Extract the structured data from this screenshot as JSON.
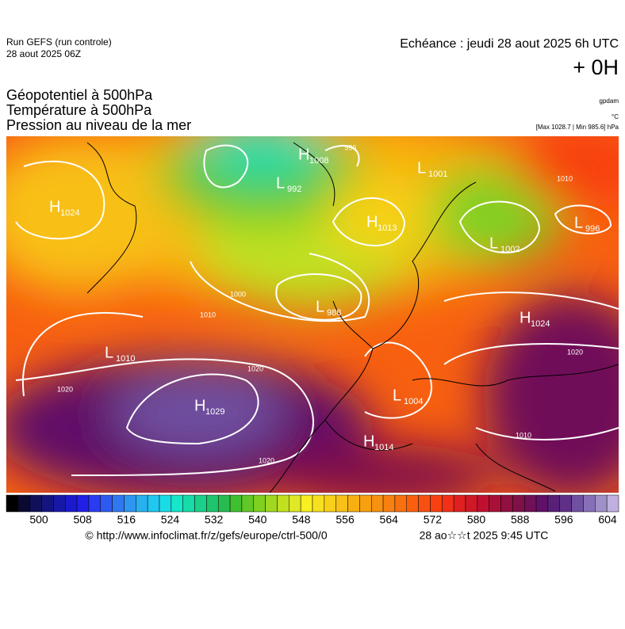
{
  "header": {
    "run": "Run GEFS (run controle)",
    "run_date": "28 aout 2025 06Z",
    "valid": "Echéance : jeudi 28 aout 2025 6h UTC",
    "offset": "+ 0H"
  },
  "titles": [
    "Géopotentiel à 500hPa",
    "Température à 500hPa",
    "Pression au niveau de la mer"
  ],
  "units": {
    "geopotential": "gpdam",
    "temperature": "°C",
    "pressure": "[Max 1028.7 | Min 985.6] hPa"
  },
  "centers": [
    {
      "letter": "H",
      "value": "1024"
    },
    {
      "letter": "H",
      "value": "1008"
    },
    {
      "letter": "L",
      "value": "992"
    },
    {
      "letter": "H",
      "value": "1013"
    },
    {
      "letter": "L",
      "value": "1001"
    },
    {
      "letter": "L",
      "value": "996"
    },
    {
      "letter": "L",
      "value": "1002"
    },
    {
      "letter": "L",
      "value": "988"
    },
    {
      "letter": "H",
      "value": "1024"
    },
    {
      "letter": "L",
      "value": "1010"
    },
    {
      "letter": "H",
      "value": "1029"
    },
    {
      "letter": "L",
      "value": "1004"
    },
    {
      "letter": "H",
      "value": "1014"
    }
  ],
  "isobar_labels": [
    "1020",
    "1020",
    "1020",
    "1010",
    "1010",
    "1000",
    "1020",
    "996",
    "1010"
  ],
  "colorbar": {
    "colors": [
      "#000000",
      "#0a0a30",
      "#10105a",
      "#141480",
      "#1818a8",
      "#1a1acc",
      "#2020e6",
      "#2a3cf0",
      "#2e5af0",
      "#3078f0",
      "#2e96f0",
      "#28b0f0",
      "#20c8f0",
      "#1adce6",
      "#18e6c8",
      "#18dca8",
      "#1cd08a",
      "#20c46c",
      "#28bc50",
      "#40c030",
      "#60c828",
      "#80d020",
      "#a0d820",
      "#c0e020",
      "#e0e828",
      "#f8f020",
      "#f8e020",
      "#f8d018",
      "#f8c018",
      "#f8b010",
      "#f8a010",
      "#f89010",
      "#f88010",
      "#f87010",
      "#f86010",
      "#f85010",
      "#f84010",
      "#f03018",
      "#e02020",
      "#d01828",
      "#c01030",
      "#a81038",
      "#901040",
      "#801048",
      "#701058",
      "#601068",
      "#582078",
      "#603088",
      "#7050a0",
      "#8870b8",
      "#a090c8",
      "#c0b0e0"
    ],
    "ticks": [
      500,
      508,
      516,
      524,
      532,
      540,
      548,
      556,
      564,
      572,
      580,
      588,
      596,
      604
    ]
  },
  "footer": {
    "source": "© http://www.infoclimat.fr/z/gefs/europe/ctrl-500/0",
    "time": "28 ao☆☆t 2025  9:45 UTC"
  }
}
